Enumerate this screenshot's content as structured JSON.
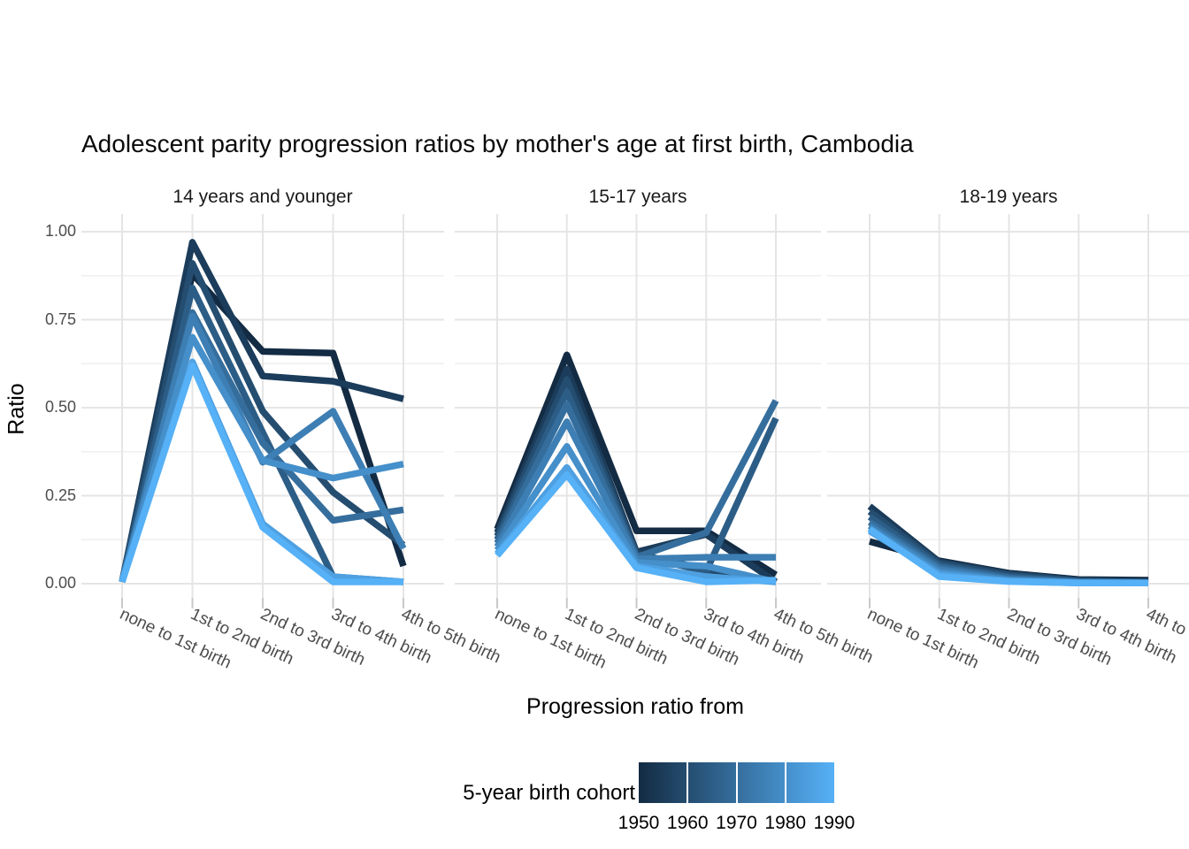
{
  "chart_data": {
    "type": "line",
    "title": "Adolescent parity progression ratios by mother's age at first birth,  Cambodia",
    "ylabel": "Ratio",
    "xlabel": "Progression ratio from",
    "ylim": [
      0,
      1
    ],
    "y_ticks": [
      {
        "value": 0.0,
        "label": "0.00"
      },
      {
        "value": 0.25,
        "label": "0.25"
      },
      {
        "value": 0.5,
        "label": "0.50"
      },
      {
        "value": 0.75,
        "label": "0.75"
      },
      {
        "value": 1.0,
        "label": "1.00"
      }
    ],
    "y_minor_gridlines": [
      0.125,
      0.375,
      0.625,
      0.875
    ],
    "categories": [
      "none to 1st birth",
      "1st to 2nd birth",
      "2nd to 3rd birth",
      "3rd to 4th birth",
      "4th to 5th birth"
    ],
    "grid": true,
    "legend_position": "bottom",
    "legend": {
      "title": "5-year birth cohort",
      "years": [
        "1950",
        "1960",
        "1970",
        "1980",
        "1990"
      ],
      "gradient": [
        "#132B43",
        "#244D70",
        "#356E9D",
        "#458FCA",
        "#56B1F7"
      ]
    },
    "cohort_colors": {
      "1950": "#132B43",
      "1955": "#1B3C5A",
      "1960": "#244D70",
      "1965": "#2C5D86",
      "1970": "#356E9D",
      "1975": "#3D7FB4",
      "1980": "#458FCA",
      "1985": "#4EA0E1",
      "1990": "#56B1F7"
    },
    "facets": [
      {
        "label": "14 years and younger",
        "series": [
          {
            "year": 1950,
            "values": [
              0.005,
              0.88,
              0.66,
              0.655,
              0.05
            ]
          },
          {
            "year": 1955,
            "values": [
              0.005,
              0.97,
              0.59,
              0.575,
              0.525
            ]
          },
          {
            "year": 1960,
            "values": [
              0.005,
              0.91,
              0.49,
              0.26,
              0.11
            ]
          },
          {
            "year": 1965,
            "values": [
              0.005,
              0.84,
              0.43,
              0.02,
              0.005
            ]
          },
          {
            "year": 1970,
            "values": [
              0.005,
              0.77,
              0.4,
              0.18,
              0.21
            ]
          },
          {
            "year": 1975,
            "values": [
              0.005,
              0.76,
              0.345,
              0.49,
              0.1
            ]
          },
          {
            "year": 1980,
            "values": [
              0.005,
              0.7,
              0.35,
              0.3,
              0.34
            ]
          },
          {
            "year": 1985,
            "values": [
              0.005,
              0.63,
              0.17,
              0.02,
              0.005
            ]
          },
          {
            "year": 1990,
            "values": [
              0.005,
              0.62,
              0.16,
              0.005,
              0.005
            ]
          }
        ]
      },
      {
        "label": "15-17 years",
        "series": [
          {
            "year": 1950,
            "values": [
              0.155,
              0.65,
              0.15,
              0.15,
              0.025
            ]
          },
          {
            "year": 1955,
            "values": [
              0.145,
              0.61,
              0.09,
              0.14,
              0.005
            ]
          },
          {
            "year": 1960,
            "values": [
              0.135,
              0.58,
              0.085,
              0.04,
              0.005
            ]
          },
          {
            "year": 1965,
            "values": [
              0.125,
              0.545,
              0.08,
              0.035,
              0.47
            ]
          },
          {
            "year": 1970,
            "values": [
              0.115,
              0.51,
              0.075,
              0.145,
              0.52
            ]
          },
          {
            "year": 1975,
            "values": [
              0.105,
              0.46,
              0.07,
              0.075,
              0.075
            ]
          },
          {
            "year": 1980,
            "values": [
              0.095,
              0.39,
              0.06,
              0.05,
              0.005
            ]
          },
          {
            "year": 1985,
            "values": [
              0.085,
              0.33,
              0.05,
              0.02,
              0.005
            ]
          },
          {
            "year": 1990,
            "values": [
              0.08,
              0.31,
              0.045,
              0.005,
              0.01
            ]
          }
        ]
      },
      {
        "label": "18-19 years",
        "series": [
          {
            "year": 1950,
            "values": [
              0.12,
              0.065,
              0.03,
              0.012,
              0.01
            ]
          },
          {
            "year": 1955,
            "values": [
              0.22,
              0.062,
              0.028,
              0.01,
              0.005
            ]
          },
          {
            "year": 1960,
            "values": [
              0.205,
              0.058,
              0.025,
              0.008,
              0.005
            ]
          },
          {
            "year": 1965,
            "values": [
              0.19,
              0.052,
              0.02,
              0.006,
              0.003
            ]
          },
          {
            "year": 1970,
            "values": [
              0.175,
              0.046,
              0.016,
              0.005,
              0.003
            ]
          },
          {
            "year": 1975,
            "values": [
              0.165,
              0.04,
              0.012,
              0.004,
              0.002
            ]
          },
          {
            "year": 1980,
            "values": [
              0.158,
              0.032,
              0.01,
              0.003,
              0.002
            ]
          },
          {
            "year": 1985,
            "values": [
              0.15,
              0.026,
              0.007,
              0.002,
              0.002
            ]
          },
          {
            "year": 1990,
            "values": [
              0.155,
              0.02,
              0.006,
              0.002,
              0.002
            ]
          }
        ]
      }
    ]
  }
}
